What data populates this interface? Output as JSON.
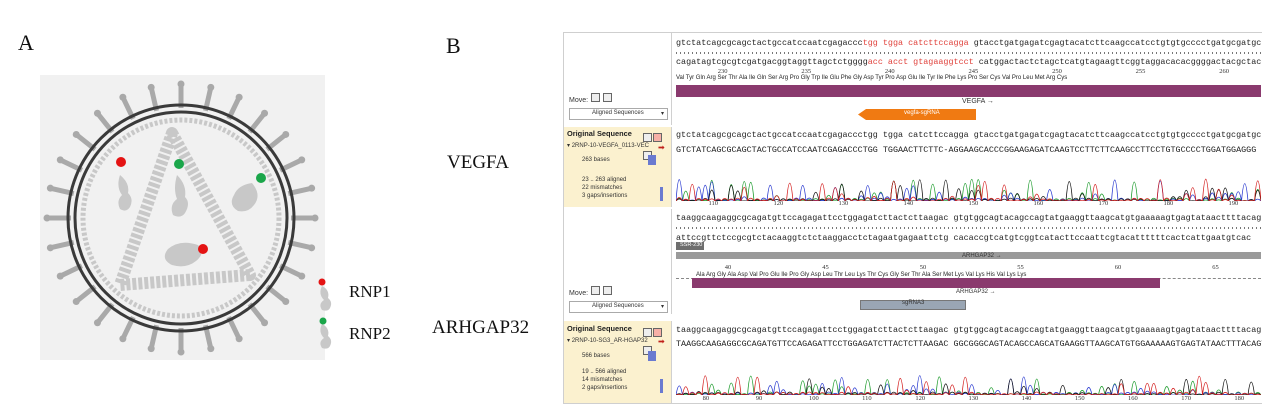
{
  "panel_labels": {
    "a": "A",
    "b": "B"
  },
  "gene_labels": {
    "vegfa": "VEGFA",
    "arhgap32": "ARHGAP32"
  },
  "legend": {
    "rnp1": "RNP1",
    "rnp2": "RNP2"
  },
  "colors": {
    "rnp1_dot": "#e41313",
    "rnp2_dot": "#1aa64a",
    "particle_gray": "#c8c8c8",
    "aa_bar": "#8a3a6e",
    "sgrna_orange": "#f07a12",
    "annot_gray": "#9a9a9a",
    "orig_bg": "#fbf1cf",
    "primer_red": "#e0403a"
  },
  "vegfa": {
    "ref_top_a": "gtctatcagcgcagctactgccatccaatcgagaccc",
    "ref_top_b": "tgg tgga catcttccagga",
    "ref_top_c": " gtacctgatgagatcgagtacatcttcaagccatcctgtgtgcccctgatgcgatgc",
    "ref_bot_a": "cagatagtcgcgtcgatgacggtaggttagctctgggg",
    "ref_bot_b": "acc acct gtagaaggtcct",
    "ref_bot_c": " catggactactctagctcatgtagaagttcggtaggacacacggggactacgctacgc",
    "aa": "Val Tyr Gln Arg Ser Thr Ala Ile Gln Ser Arg Pro Gly Trp Ile Glu Phe Gly Asp Tyr Pro Asp Glu Ile Tyr Ile Phe Lys Pro Ser Cys Val Pro Leu Met Arg Cys",
    "positions": [
      "230",
      "235",
      "240",
      "245",
      "250",
      "255",
      "260"
    ],
    "move_label": "Move:",
    "dropdown": "Aligned Sequences",
    "feature_label": "VEGFA",
    "sgrna_label": "vegfa-sgRNA",
    "orig_header": "Original Sequence",
    "read_name": "2RNP-10-VEGFA_0113-VEC",
    "bases": "263 bases",
    "stat1": "23 .. 263 aligned",
    "stat2": "22 mismatches",
    "stat3": "3 gaps/insertions",
    "read_seq": "GTCTATCAGCGCAGCTACTGCCATCCAATCGAGACCCTGG TGGAACTTCTTC-AGGAAGCACCCGGAAGAGATCAAGTCCTTCTTCAAGCCTTCCTGTGCCCCTGGATGGAGGG",
    "trace_positions": [
      "110",
      "120",
      "130",
      "140",
      "150",
      "160",
      "170",
      "180",
      "190"
    ]
  },
  "arhgap32": {
    "ref_top": "taaggcaagaggcgcagatgttccagagattcctggagatcttactcttaagac gtgtggcagtacagccagtatgaaggttaagcatgtgaaaaagtgagtataacttttacagtg",
    "ref_bot": "attccgttctccgcgtctacaaggtctctaaggacctctagaatgagaattctg cacaccgtcatgtcggtcatacttccaattcgtacattttttcactcattgaatgtcac",
    "primer_label": "SSR-230",
    "aa": "Ala Arg Gly Ala Asp Val Pro Glu Ile Pro Gly Asp Leu Thr Leu Lys Thr Cys Gly Ser Thr Ala Ser Met Lys Val Lys His Val Lys Lys",
    "positions": [
      "40",
      "45",
      "50",
      "55",
      "60",
      "65"
    ],
    "move_label": "Move:",
    "dropdown": "Aligned Sequences",
    "feature_label": "ARHGAP32",
    "feature_label2": "ARHGAP32",
    "sgrna_label": "sgRNA3",
    "orig_header": "Original Sequence",
    "read_name": "2RNP-10-SG3_AR-HGAP32",
    "bases": "566 bases",
    "stat1": "19 .. 566 aligned",
    "stat2": "14 mismatches",
    "stat3": "2 gaps/insertions",
    "read_seq": "TAAGGCAAGAGGCGCAGATGTTCCAGAGATTCCTGGAGATCTTACTCTTAAGAC GGCGGGCAGTACAGCCAGCATGAAGGTTAAGCATGTGGAAAAAGTGAGTATAACTTTACAGTG",
    "trace_positions": [
      "80",
      "90",
      "100",
      "110",
      "120",
      "130",
      "140",
      "150",
      "160",
      "170",
      "180"
    ]
  }
}
